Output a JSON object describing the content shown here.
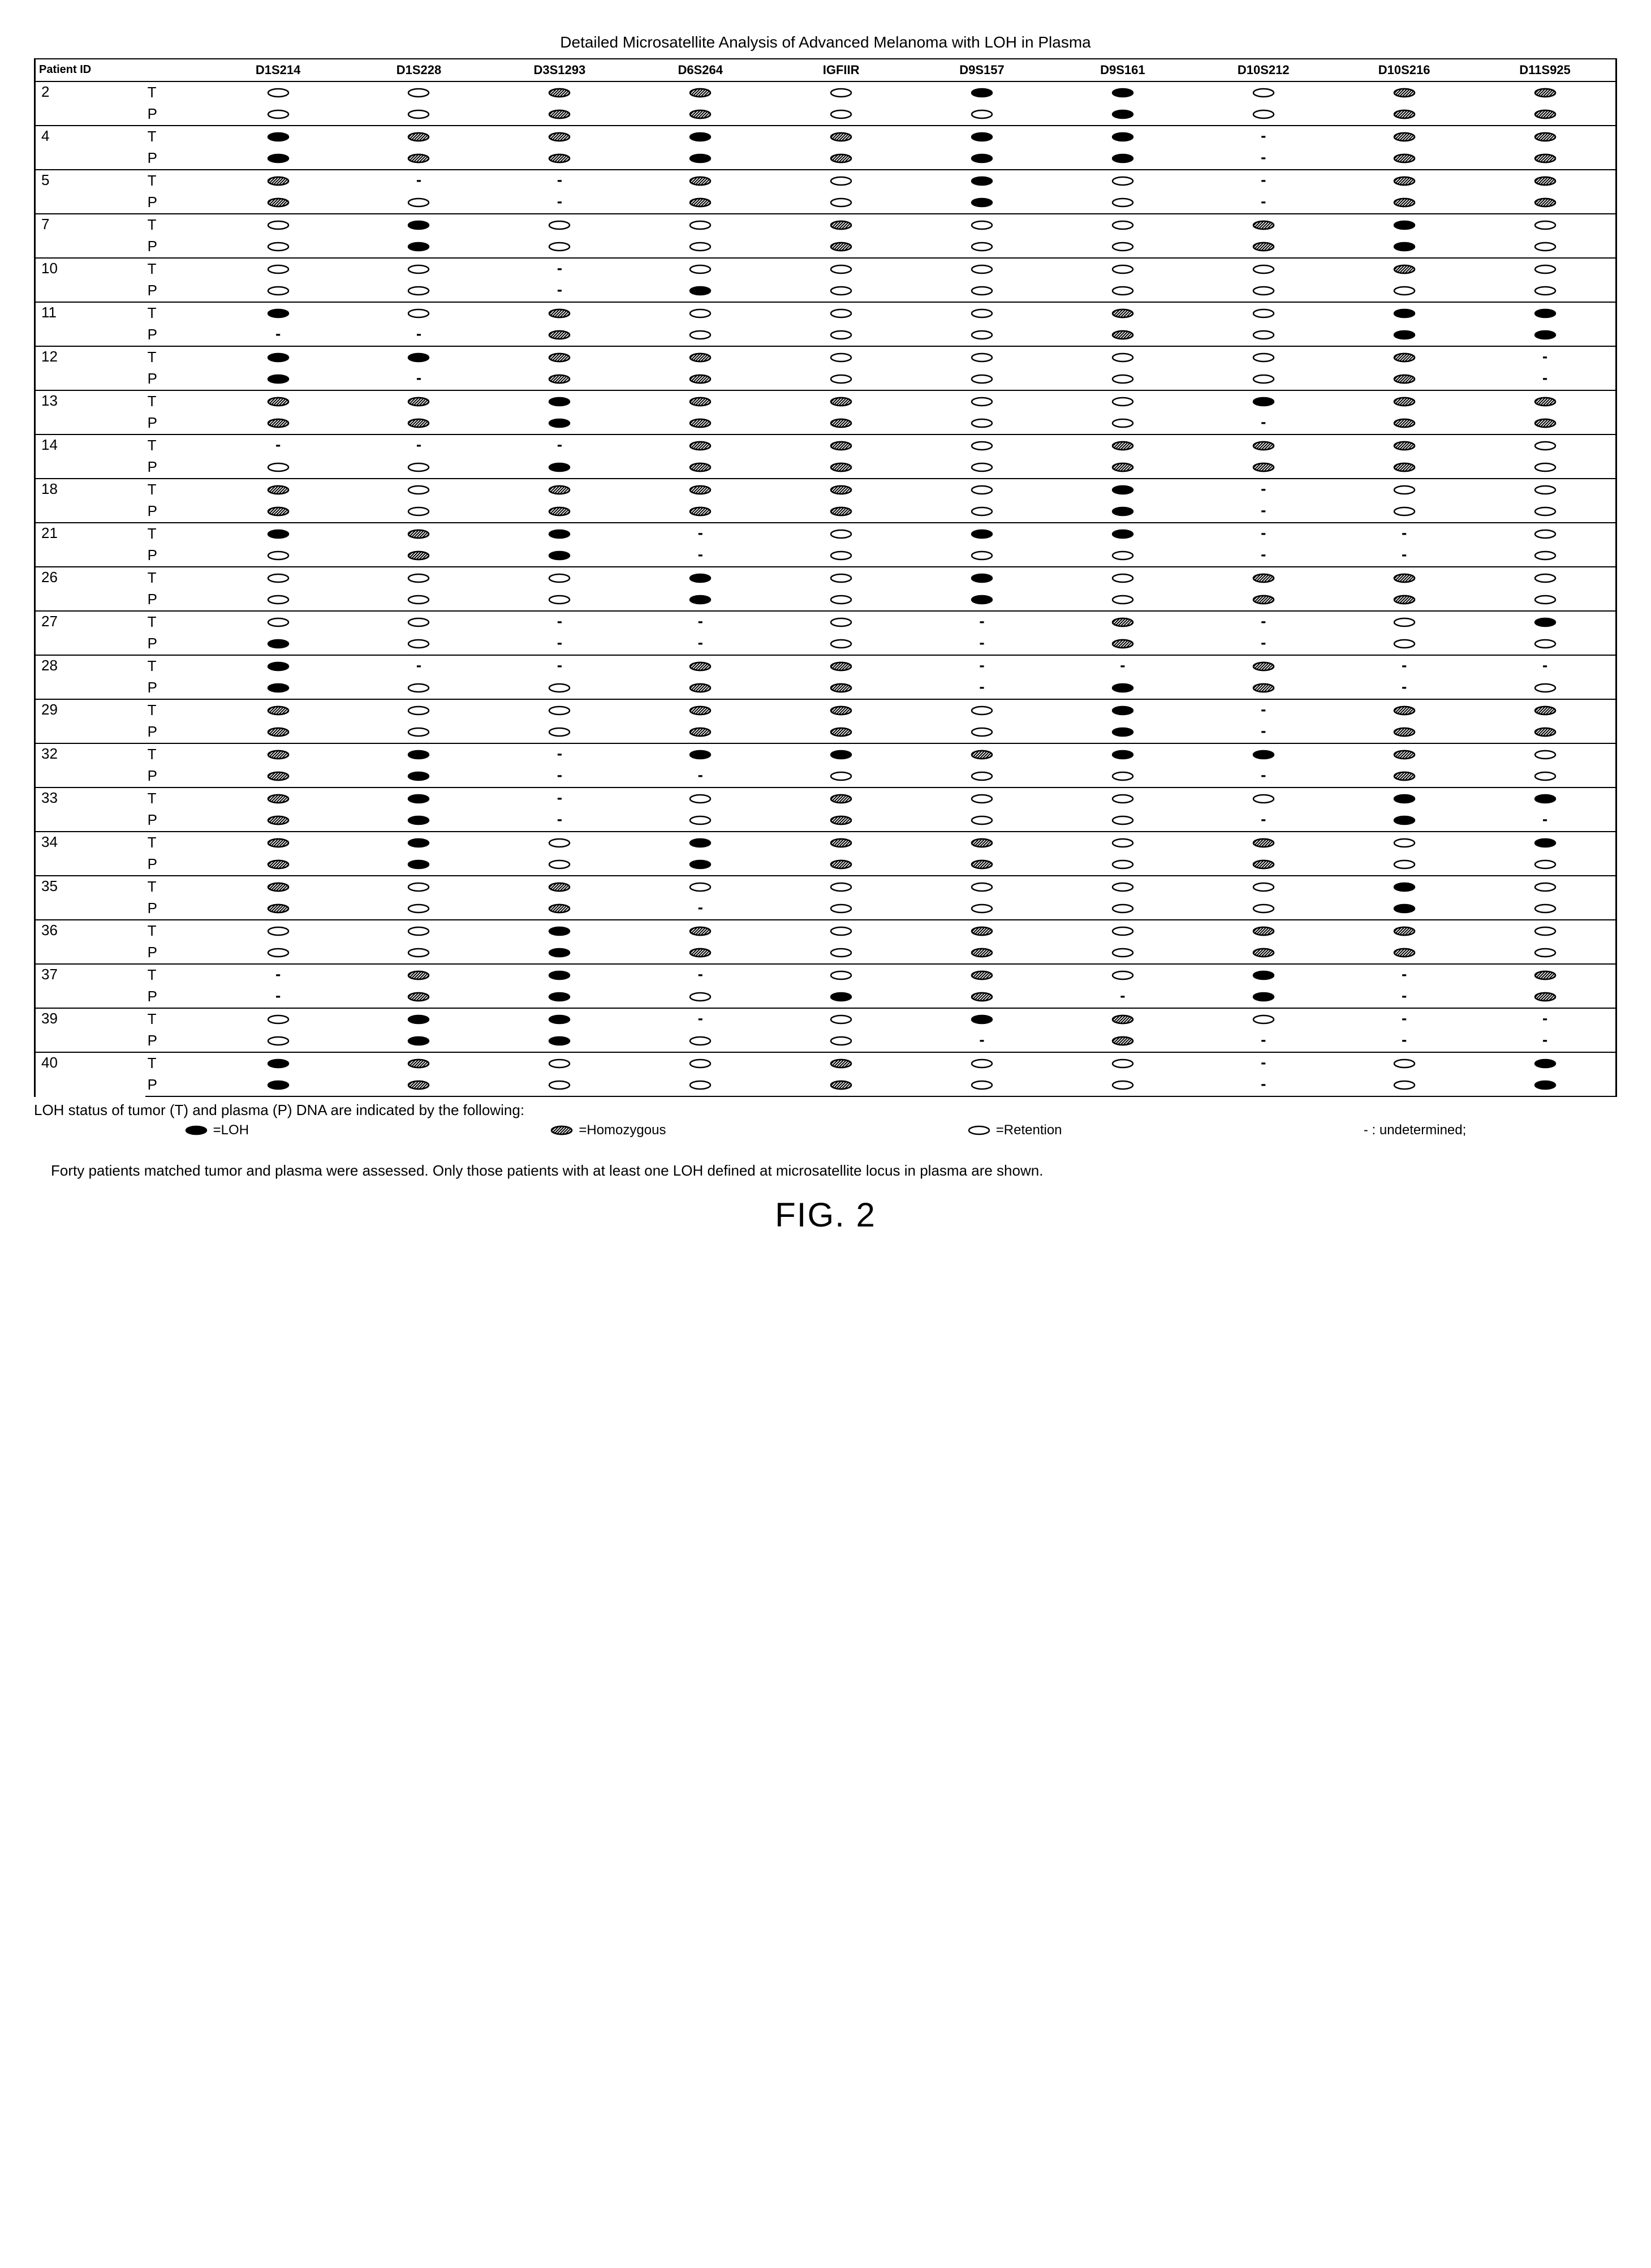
{
  "title": "Detailed Microsatellite Analysis of Advanced Melanoma with LOH in Plasma",
  "columns": [
    "Patient ID",
    "D1S214",
    "D1S228",
    "D3S1293",
    "D6S264",
    "IGFIIR",
    "D9S157",
    "D9S161",
    "D10S212",
    "D10S216",
    "D11S925"
  ],
  "col_widths_pct": [
    7,
    4,
    9,
    9,
    9,
    9,
    9,
    9,
    9,
    9,
    9,
    9
  ],
  "patients": [
    {
      "id": "2",
      "T": [
        "R",
        "R",
        "H",
        "H",
        "R",
        "L",
        "L",
        "R",
        "H",
        "H"
      ],
      "P": [
        "R",
        "R",
        "H",
        "H",
        "R",
        "R",
        "L",
        "R",
        "H",
        "H"
      ]
    },
    {
      "id": "4",
      "T": [
        "L",
        "H",
        "H",
        "L",
        "H",
        "L",
        "L",
        "U",
        "H",
        "H"
      ],
      "P": [
        "L",
        "H",
        "H",
        "L",
        "H",
        "L",
        "L",
        "U",
        "H",
        "H"
      ]
    },
    {
      "id": "5",
      "T": [
        "H",
        "U",
        "U",
        "H",
        "R",
        "L",
        "R",
        "U",
        "H",
        "H"
      ],
      "P": [
        "H",
        "R",
        "U",
        "H",
        "R",
        "L",
        "R",
        "U",
        "H",
        "H"
      ]
    },
    {
      "id": "7",
      "T": [
        "R",
        "L",
        "R",
        "R",
        "H",
        "R",
        "R",
        "H",
        "L",
        "R"
      ],
      "P": [
        "R",
        "L",
        "R",
        "R",
        "H",
        "R",
        "R",
        "H",
        "L",
        "R"
      ]
    },
    {
      "id": "10",
      "T": [
        "R",
        "R",
        "U",
        "R",
        "R",
        "R",
        "R",
        "R",
        "H",
        "R"
      ],
      "P": [
        "R",
        "R",
        "U",
        "L",
        "R",
        "R",
        "R",
        "R",
        "R",
        "R"
      ]
    },
    {
      "id": "11",
      "T": [
        "L",
        "R",
        "H",
        "R",
        "R",
        "R",
        "H",
        "R",
        "L",
        "L"
      ],
      "P": [
        "U",
        "U",
        "H",
        "R",
        "R",
        "R",
        "H",
        "R",
        "L",
        "L"
      ]
    },
    {
      "id": "12",
      "T": [
        "L",
        "L",
        "H",
        "H",
        "R",
        "R",
        "R",
        "R",
        "H",
        "U"
      ],
      "P": [
        "L",
        "U",
        "H",
        "H",
        "R",
        "R",
        "R",
        "R",
        "H",
        "U"
      ]
    },
    {
      "id": "13",
      "T": [
        "H",
        "H",
        "L",
        "H",
        "H",
        "R",
        "R",
        "L",
        "H",
        "H"
      ],
      "P": [
        "H",
        "H",
        "L",
        "H",
        "H",
        "R",
        "R",
        "U",
        "H",
        "H"
      ]
    },
    {
      "id": "14",
      "T": [
        "U",
        "U",
        "U",
        "H",
        "H",
        "R",
        "H",
        "H",
        "H",
        "R"
      ],
      "P": [
        "R",
        "R",
        "L",
        "H",
        "H",
        "R",
        "H",
        "H",
        "H",
        "R"
      ]
    },
    {
      "id": "18",
      "T": [
        "H",
        "R",
        "H",
        "H",
        "H",
        "R",
        "L",
        "U",
        "R",
        "R"
      ],
      "P": [
        "H",
        "R",
        "H",
        "H",
        "H",
        "R",
        "L",
        "U",
        "R",
        "R"
      ]
    },
    {
      "id": "21",
      "T": [
        "L",
        "H",
        "L",
        "U",
        "R",
        "L",
        "L",
        "U",
        "U",
        "R"
      ],
      "P": [
        "R",
        "H",
        "L",
        "U",
        "R",
        "R",
        "R",
        "U",
        "U",
        "R"
      ]
    },
    {
      "id": "26",
      "T": [
        "R",
        "R",
        "R",
        "L",
        "R",
        "L",
        "R",
        "H",
        "H",
        "R"
      ],
      "P": [
        "R",
        "R",
        "R",
        "L",
        "R",
        "L",
        "R",
        "H",
        "H",
        "R"
      ]
    },
    {
      "id": "27",
      "T": [
        "R",
        "R",
        "U",
        "U",
        "R",
        "U",
        "H",
        "U",
        "R",
        "L"
      ],
      "P": [
        "L",
        "R",
        "U",
        "U",
        "R",
        "U",
        "H",
        "U",
        "R",
        "R"
      ]
    },
    {
      "id": "28",
      "T": [
        "L",
        "U",
        "U",
        "H",
        "H",
        "U",
        "U",
        "H",
        "U",
        "U"
      ],
      "P": [
        "L",
        "R",
        "R",
        "H",
        "H",
        "U",
        "L",
        "H",
        "U",
        "R"
      ]
    },
    {
      "id": "29",
      "T": [
        "H",
        "R",
        "R",
        "H",
        "H",
        "R",
        "L",
        "U",
        "H",
        "H"
      ],
      "P": [
        "H",
        "R",
        "R",
        "H",
        "H",
        "R",
        "L",
        "U",
        "H",
        "H"
      ]
    },
    {
      "id": "32",
      "T": [
        "H",
        "L",
        "U",
        "L",
        "L",
        "H",
        "L",
        "L",
        "H",
        "R"
      ],
      "P": [
        "H",
        "L",
        "U",
        "U",
        "R",
        "R",
        "R",
        "U",
        "H",
        "R"
      ]
    },
    {
      "id": "33",
      "T": [
        "H",
        "L",
        "U",
        "R",
        "H",
        "R",
        "R",
        "R",
        "L",
        "L"
      ],
      "P": [
        "H",
        "L",
        "U",
        "R",
        "H",
        "R",
        "R",
        "U",
        "L",
        "U"
      ]
    },
    {
      "id": "34",
      "T": [
        "H",
        "L",
        "R",
        "L",
        "H",
        "H",
        "R",
        "H",
        "R",
        "L"
      ],
      "P": [
        "H",
        "L",
        "R",
        "L",
        "H",
        "H",
        "R",
        "H",
        "R",
        "R"
      ]
    },
    {
      "id": "35",
      "T": [
        "H",
        "R",
        "H",
        "R",
        "R",
        "R",
        "R",
        "R",
        "L",
        "R"
      ],
      "P": [
        "H",
        "R",
        "H",
        "U",
        "R",
        "R",
        "R",
        "R",
        "L",
        "R"
      ]
    },
    {
      "id": "36",
      "T": [
        "R",
        "R",
        "L",
        "H",
        "R",
        "H",
        "R",
        "H",
        "H",
        "R"
      ],
      "P": [
        "R",
        "R",
        "L",
        "H",
        "R",
        "H",
        "R",
        "H",
        "H",
        "R"
      ]
    },
    {
      "id": "37",
      "T": [
        "U",
        "H",
        "L",
        "U",
        "R",
        "H",
        "R",
        "L",
        "U",
        "H"
      ],
      "P": [
        "U",
        "H",
        "L",
        "R",
        "L",
        "H",
        "U",
        "L",
        "U",
        "H"
      ]
    },
    {
      "id": "39",
      "T": [
        "R",
        "L",
        "L",
        "U",
        "R",
        "L",
        "H",
        "R",
        "U",
        "U"
      ],
      "P": [
        "R",
        "L",
        "L",
        "R",
        "R",
        "U",
        "H",
        "U",
        "U",
        "U"
      ]
    },
    {
      "id": "40",
      "T": [
        "L",
        "H",
        "R",
        "R",
        "H",
        "R",
        "R",
        "U",
        "R",
        "L"
      ],
      "P": [
        "L",
        "H",
        "R",
        "R",
        "H",
        "R",
        "R",
        "U",
        "R",
        "L"
      ]
    }
  ],
  "symbols": {
    "L": {
      "type": "ellipse_filled",
      "bg": "#000000",
      "border": "#000000",
      "label": "=LOH"
    },
    "H": {
      "type": "ellipse_hatched",
      "bg": "#ffffff",
      "border": "#000000",
      "label": "=Homozygous"
    },
    "R": {
      "type": "ellipse_open",
      "bg": "#ffffff",
      "border": "#000000",
      "label": "=Retention"
    },
    "U": {
      "type": "dash",
      "label": "- : undetermined;"
    }
  },
  "ellipse": {
    "w": 40,
    "h": 18,
    "rx": 18,
    "ry": 7,
    "stroke_width": 2.5
  },
  "legend_line1": "LOH status of tumor (T) and plasma (P) DNA are indicated by the following:",
  "caption": "Forty patients matched tumor and plasma were assessed.  Only those patients with at least one LOH defined at microsatellite locus in plasma are shown.",
  "figure_label": "FIG. 2",
  "row_labels": {
    "T": "T",
    "P": "P"
  }
}
